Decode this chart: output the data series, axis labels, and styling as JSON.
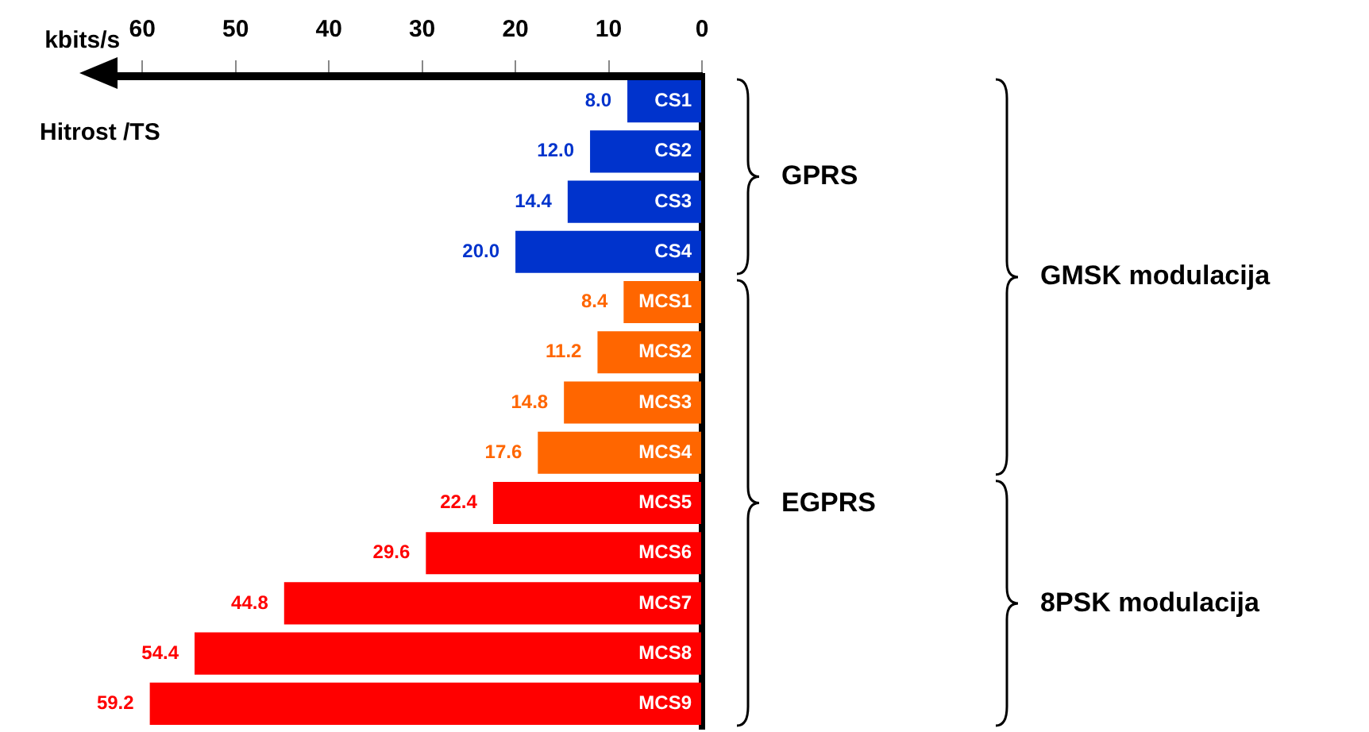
{
  "chart_data": {
    "type": "bar",
    "orientation": "horizontal",
    "xlabel": "kbits/s",
    "ylabel": "Hitrost /TS",
    "categories": [
      "CS1",
      "CS2",
      "CS3",
      "CS4",
      "MCS1",
      "MCS2",
      "MCS3",
      "MCS4",
      "MCS5",
      "MCS6",
      "MCS7",
      "MCS8",
      "MCS9"
    ],
    "values": [
      8.0,
      12.0,
      14.4,
      20.0,
      8.4,
      11.2,
      14.8,
      17.6,
      22.4,
      29.6,
      44.8,
      54.4,
      59.2
    ],
    "colors": [
      "#0033cc",
      "#0033cc",
      "#0033cc",
      "#0033cc",
      "#ff6600",
      "#ff6600",
      "#ff6600",
      "#ff6600",
      "#ff0000",
      "#ff0000",
      "#ff0000",
      "#ff0000",
      "#ff0000"
    ],
    "value_labels": [
      "8.0",
      "12.0",
      "14.4",
      "20.0",
      "8.4",
      "11.2",
      "14.8",
      "17.6",
      "22.4",
      "29.6",
      "44.8",
      "54.4",
      "59.2"
    ],
    "xlim": [
      63,
      0
    ],
    "xticks": [
      60,
      50,
      40,
      30,
      20,
      10,
      0
    ],
    "annotations": [
      "GPRS",
      "EGPRS",
      "GMSK modulacija",
      "8PSK modulacija"
    ],
    "grid": false,
    "legend": false
  }
}
